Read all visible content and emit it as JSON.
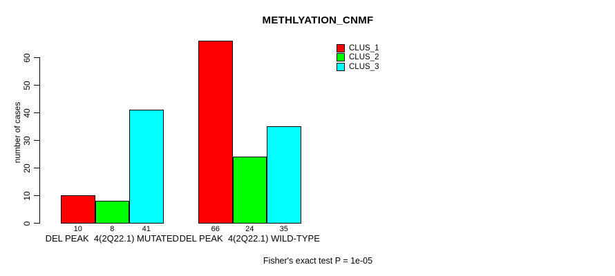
{
  "chart_data": {
    "type": "bar",
    "title": "METHLYATION_CNMF",
    "ylabel": "number of cases",
    "xlabel": "",
    "categories": [
      "DEL PEAK  4(2Q22.1) MUTATED",
      "DEL PEAK  4(2Q22.1) WILD-TYPE"
    ],
    "series": [
      {
        "name": "CLUS_1",
        "color": "#ff0000",
        "values": [
          10,
          66
        ]
      },
      {
        "name": "CLUS_2",
        "color": "#00ff00",
        "values": [
          8,
          24
        ]
      },
      {
        "name": "CLUS_3",
        "color": "#00ffff",
        "values": [
          41,
          35
        ]
      }
    ],
    "show_bar_values": true,
    "ylim": [
      0,
      60
    ],
    "yticks": [
      0,
      10,
      20,
      30,
      40,
      50,
      60
    ],
    "grid": false,
    "legend_position": "top-right",
    "annotation": "Fisher's exact test P = 1e-05"
  }
}
